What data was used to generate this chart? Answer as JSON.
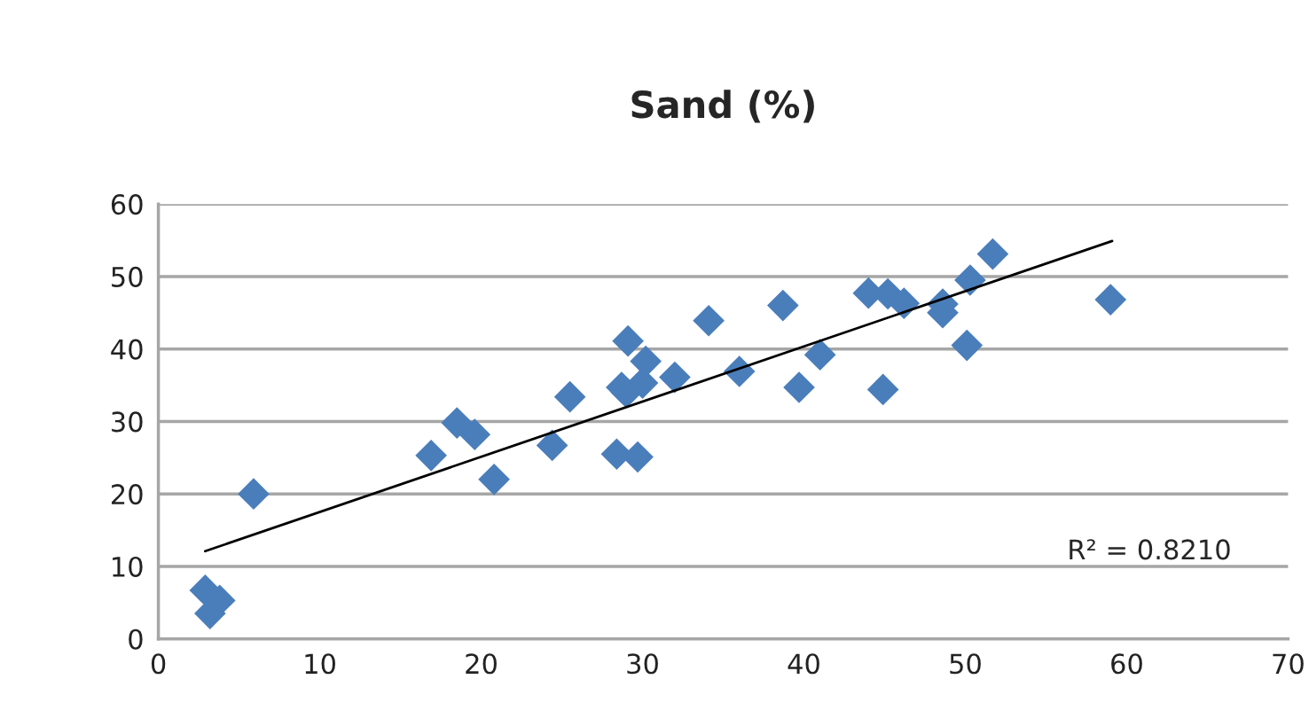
{
  "chart_data": {
    "type": "scatter",
    "title": "Sand (%)",
    "marker": "diamond",
    "grid": "y",
    "legend": false,
    "xlim": [
      0,
      70
    ],
    "xticks": [
      0,
      10,
      20,
      30,
      40,
      50,
      60,
      70
    ],
    "ylim": [
      0,
      60
    ],
    "yticks": [
      0,
      10,
      20,
      30,
      40,
      50,
      60
    ],
    "annotations": [
      "R² = 0.8210"
    ],
    "series": [
      {
        "color": "#4a7ebb",
        "x": [
          2.9,
          3.2,
          3.8,
          5.9,
          16.9,
          18.5,
          19.6,
          20.8,
          24.4,
          25.5,
          28.4,
          28.7,
          29.1,
          29.0,
          29.7,
          30.0,
          30.2,
          32.0,
          34.1,
          36.0,
          38.7,
          39.7,
          41.0,
          44.0,
          44.9,
          45.2,
          46.2,
          48.6,
          48.6,
          50.1,
          50.3,
          51.7,
          59.0
        ],
        "values": [
          6.7,
          3.5,
          5.3,
          20.0,
          25.3,
          29.8,
          28.2,
          22.0,
          26.7,
          33.4,
          25.5,
          34.7,
          41.1,
          34.0,
          25.1,
          35.3,
          38.3,
          36.1,
          43.9,
          36.9,
          46.0,
          34.7,
          39.2,
          47.7,
          34.4,
          47.6,
          46.3,
          46.2,
          45.0,
          40.5,
          49.5,
          53.1,
          46.8
        ]
      },
      {
        "type": "line",
        "color": "#000000",
        "marker": "none",
        "x": [
          2.9,
          59.1
        ],
        "values": [
          12.1,
          54.9
        ]
      }
    ]
  }
}
